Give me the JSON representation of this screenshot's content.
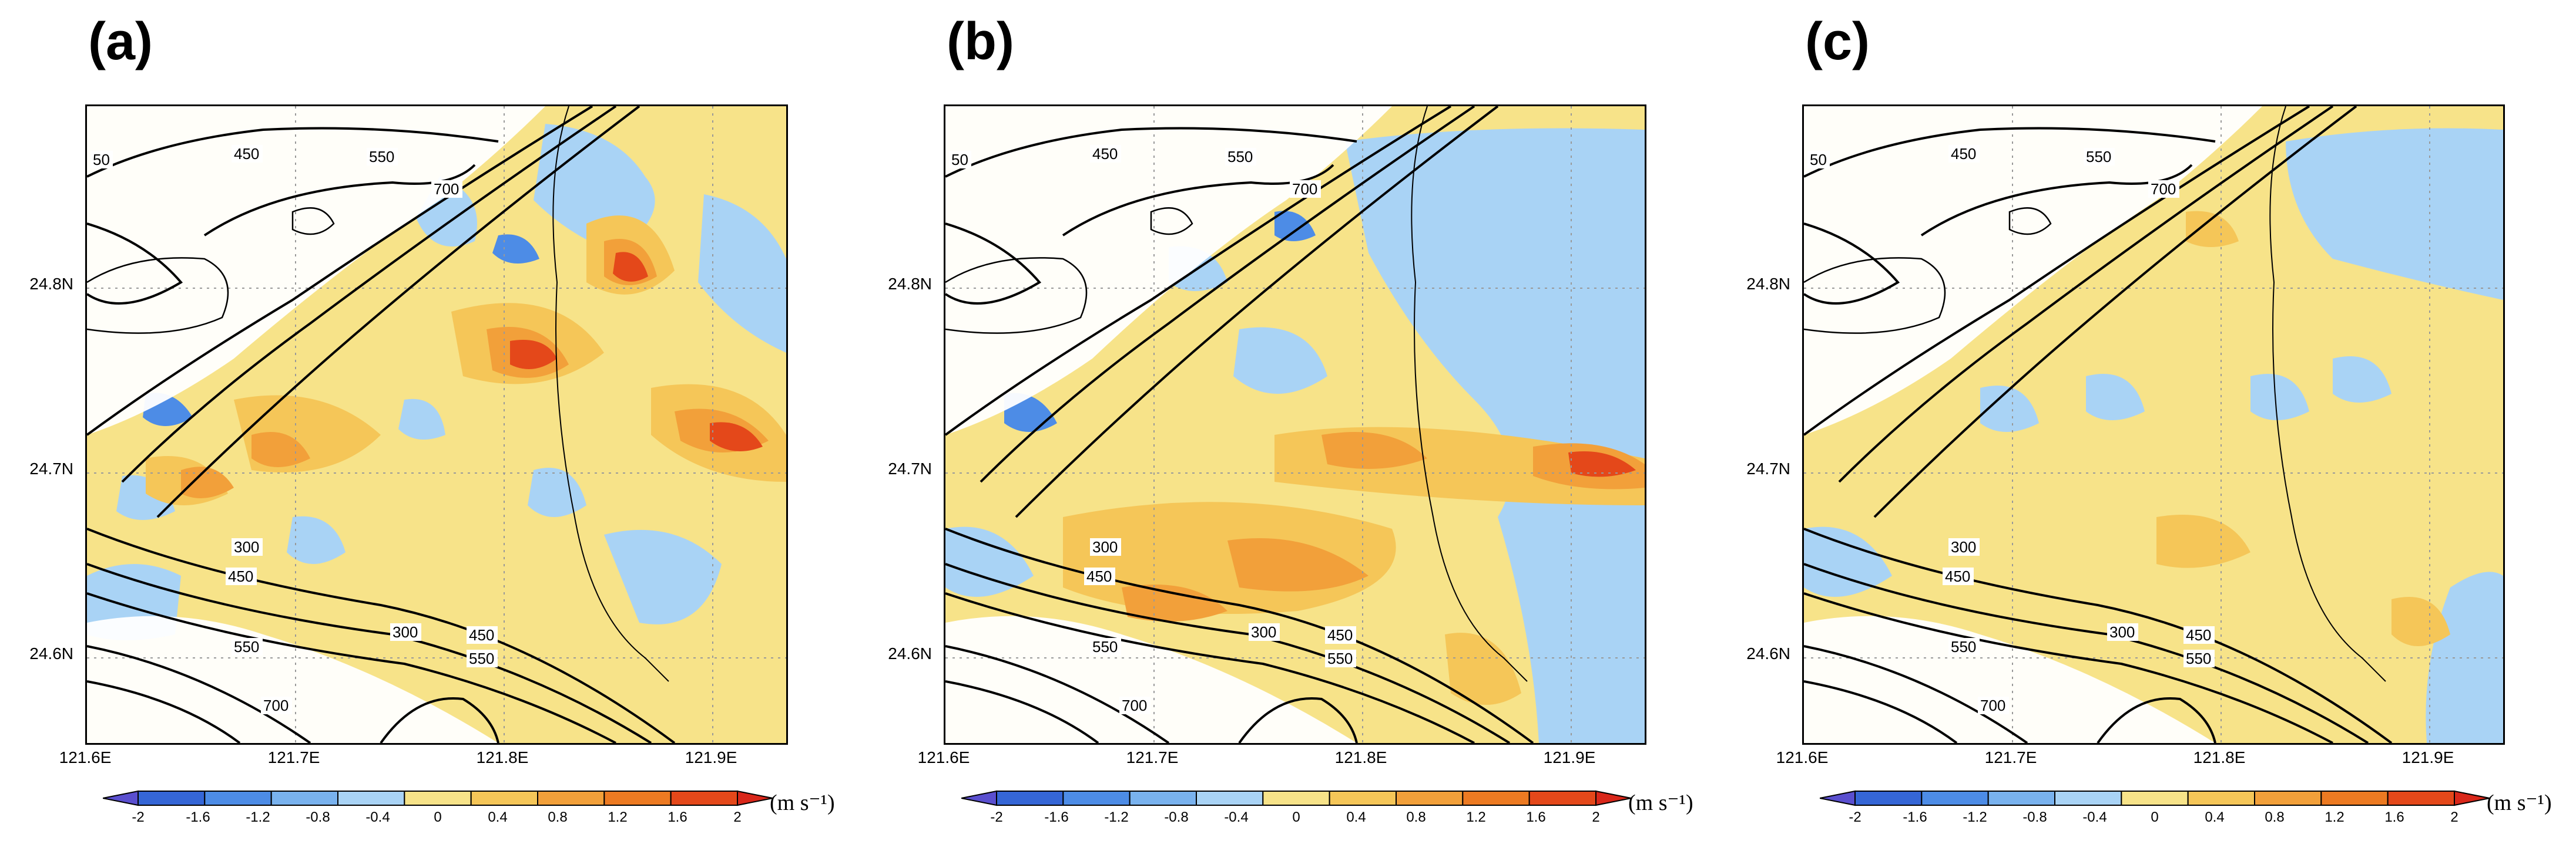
{
  "panels": [
    {
      "label": "(a)"
    },
    {
      "label": "(b)"
    },
    {
      "label": "(c)"
    }
  ],
  "y_ticks": [
    "24.8N",
    "24.7N",
    "24.6N"
  ],
  "x_ticks": [
    "121.6E",
    "121.7E",
    "121.8E",
    "121.9E"
  ],
  "contour_labels": {
    "top": [
      "450",
      "550",
      "700",
      "50"
    ],
    "bottom": [
      "300",
      "450",
      "300",
      "550",
      "450",
      "550",
      "700"
    ]
  },
  "colorbar": {
    "labels": [
      "-2",
      "-1.6",
      "-1.2",
      "-0.8",
      "-0.4",
      "0",
      "0.4",
      "0.8",
      "1.2",
      "1.6",
      "2"
    ],
    "unit": "(m s⁻¹)",
    "colors": [
      "#5a4fcf",
      "#3566d6",
      "#4d8ce6",
      "#79b2ee",
      "#a9d3f5",
      "#f7e389",
      "#f5c658",
      "#f2a03a",
      "#ec7a22",
      "#e4481a",
      "#d9271a"
    ]
  }
}
